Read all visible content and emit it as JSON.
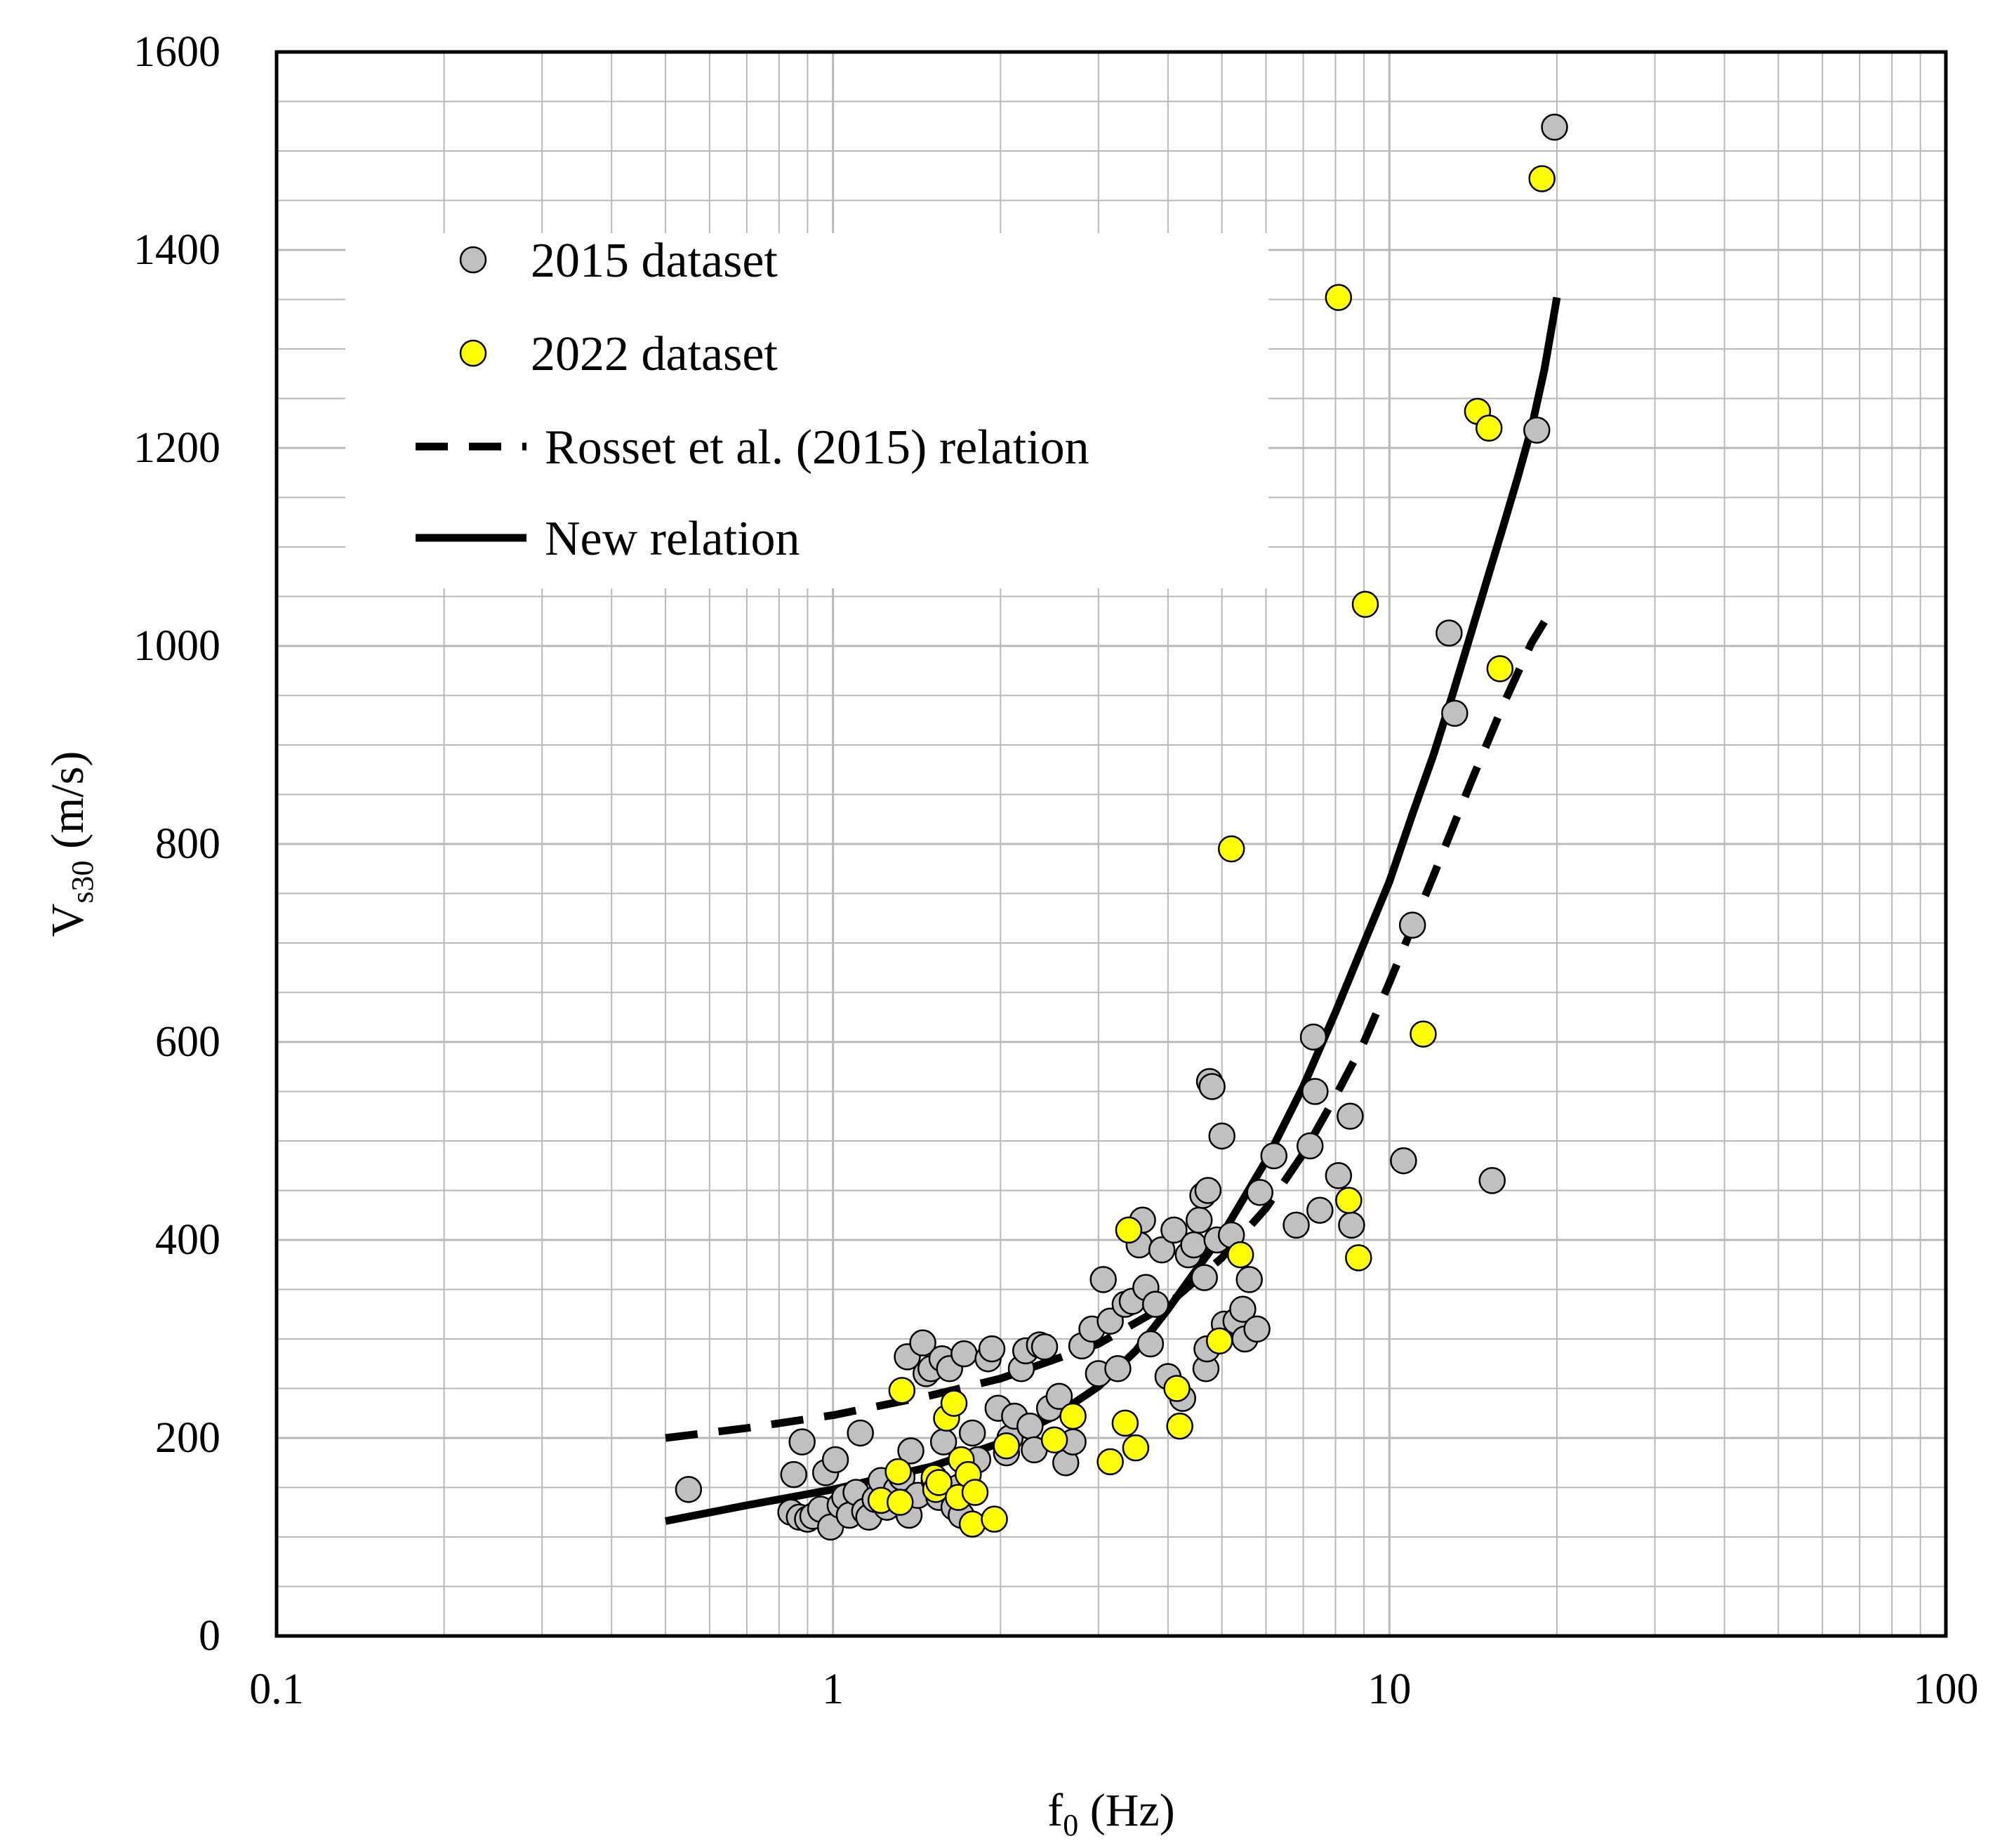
{
  "chart_data": {
    "type": "scatter",
    "title": "",
    "xlabel": {
      "main": "f",
      "sub": "0",
      "suffix": " (Hz)"
    },
    "ylabel": {
      "main": "V",
      "sub": "s30",
      "suffix": " (m/s)"
    },
    "xscale": "log",
    "xlim": [
      0.1,
      100
    ],
    "ylim": [
      0,
      1600
    ],
    "x_tick_labels": [
      "0.1",
      "1",
      "10",
      "100"
    ],
    "y_tick_labels": [
      "0",
      "200",
      "400",
      "600",
      "800",
      "1000",
      "1200",
      "1400",
      "1600"
    ],
    "grid": true,
    "legend_position": "top-left",
    "legend": [
      "2015 dataset",
      "2022 dataset",
      "Rosset et al. (2015) relation",
      "New relation"
    ],
    "colors": {
      "grey_marker": "#c0c0c0",
      "yellow_marker": "#ffff00",
      "marker_edge": "#000000",
      "grid": "#b8b8b8",
      "line": "#000000"
    },
    "series": [
      {
        "name": "2015 dataset",
        "kind": "scatter",
        "points": [
          [
            0.55,
            148
          ],
          [
            0.84,
            125
          ],
          [
            0.85,
            163
          ],
          [
            0.87,
            120
          ],
          [
            0.88,
            196
          ],
          [
            0.9,
            118
          ],
          [
            0.92,
            121
          ],
          [
            0.95,
            128
          ],
          [
            0.97,
            165
          ],
          [
            0.99,
            110
          ],
          [
            1.01,
            178
          ],
          [
            1.03,
            132
          ],
          [
            1.05,
            140
          ],
          [
            1.07,
            122
          ],
          [
            1.1,
            145
          ],
          [
            1.12,
            205
          ],
          [
            1.14,
            126
          ],
          [
            1.16,
            120
          ],
          [
            1.19,
            138
          ],
          [
            1.22,
            157
          ],
          [
            1.25,
            130
          ],
          [
            1.3,
            148
          ],
          [
            1.33,
            160
          ],
          [
            1.36,
            282
          ],
          [
            1.37,
            122
          ],
          [
            1.38,
            187
          ],
          [
            1.42,
            142
          ],
          [
            1.45,
            296
          ],
          [
            1.47,
            265
          ],
          [
            1.5,
            270
          ],
          [
            1.52,
            157
          ],
          [
            1.55,
            140
          ],
          [
            1.57,
            280
          ],
          [
            1.58,
            196
          ],
          [
            1.62,
            270
          ],
          [
            1.65,
            130
          ],
          [
            1.68,
            150
          ],
          [
            1.7,
            122
          ],
          [
            1.72,
            285
          ],
          [
            1.78,
            205
          ],
          [
            1.82,
            178
          ],
          [
            1.9,
            280
          ],
          [
            1.93,
            290
          ],
          [
            1.98,
            230
          ],
          [
            2.05,
            185
          ],
          [
            2.08,
            200
          ],
          [
            2.12,
            222
          ],
          [
            2.18,
            270
          ],
          [
            2.22,
            288
          ],
          [
            2.26,
            212
          ],
          [
            2.3,
            188
          ],
          [
            2.35,
            294
          ],
          [
            2.4,
            292
          ],
          [
            2.45,
            230
          ],
          [
            2.55,
            242
          ],
          [
            2.62,
            175
          ],
          [
            2.7,
            196
          ],
          [
            2.8,
            293
          ],
          [
            2.92,
            310
          ],
          [
            3.0,
            265
          ],
          [
            3.06,
            360
          ],
          [
            3.15,
            318
          ],
          [
            3.25,
            270
          ],
          [
            3.35,
            335
          ],
          [
            3.45,
            338
          ],
          [
            3.55,
            395
          ],
          [
            3.6,
            420
          ],
          [
            3.65,
            352
          ],
          [
            3.72,
            295
          ],
          [
            3.8,
            335
          ],
          [
            3.9,
            390
          ],
          [
            4.0,
            262
          ],
          [
            4.1,
            410
          ],
          [
            4.25,
            240
          ],
          [
            4.35,
            385
          ],
          [
            4.45,
            395
          ],
          [
            4.55,
            420
          ],
          [
            4.62,
            445
          ],
          [
            4.65,
            362
          ],
          [
            4.68,
            270
          ],
          [
            4.7,
            290
          ],
          [
            4.72,
            450
          ],
          [
            4.75,
            560
          ],
          [
            4.8,
            555
          ],
          [
            4.9,
            400
          ],
          [
            5.0,
            505
          ],
          [
            5.05,
            315
          ],
          [
            5.2,
            405
          ],
          [
            5.3,
            318
          ],
          [
            5.45,
            330
          ],
          [
            5.5,
            300
          ],
          [
            5.6,
            360
          ],
          [
            5.78,
            310
          ],
          [
            5.85,
            448
          ],
          [
            6.2,
            485
          ],
          [
            6.8,
            415
          ],
          [
            7.2,
            495
          ],
          [
            7.3,
            605
          ],
          [
            7.35,
            550
          ],
          [
            7.5,
            430
          ],
          [
            8.1,
            465
          ],
          [
            8.5,
            525
          ],
          [
            8.55,
            415
          ],
          [
            10.6,
            480
          ],
          [
            11.0,
            718
          ],
          [
            12.8,
            1013
          ],
          [
            13.1,
            932
          ],
          [
            15.3,
            460
          ],
          [
            18.4,
            1218
          ],
          [
            19.8,
            1524
          ]
        ]
      },
      {
        "name": "2022 dataset",
        "kind": "scatter",
        "points": [
          [
            1.22,
            137
          ],
          [
            1.31,
            166
          ],
          [
            1.32,
            135
          ],
          [
            1.33,
            248
          ],
          [
            1.52,
            160
          ],
          [
            1.53,
            148
          ],
          [
            1.55,
            155
          ],
          [
            1.6,
            220
          ],
          [
            1.65,
            235
          ],
          [
            1.68,
            140
          ],
          [
            1.7,
            178
          ],
          [
            1.75,
            163
          ],
          [
            1.78,
            113
          ],
          [
            1.8,
            145
          ],
          [
            1.95,
            118
          ],
          [
            2.05,
            192
          ],
          [
            2.5,
            198
          ],
          [
            2.7,
            222
          ],
          [
            3.15,
            176
          ],
          [
            3.35,
            215
          ],
          [
            3.4,
            410
          ],
          [
            3.5,
            190
          ],
          [
            4.15,
            250
          ],
          [
            4.2,
            212
          ],
          [
            4.95,
            298
          ],
          [
            5.2,
            795
          ],
          [
            5.4,
            385
          ],
          [
            8.1,
            1352
          ],
          [
            8.45,
            440
          ],
          [
            8.8,
            382
          ],
          [
            9.05,
            1042
          ],
          [
            11.5,
            608
          ],
          [
            14.4,
            1237
          ],
          [
            15.1,
            1220
          ],
          [
            15.8,
            977
          ],
          [
            18.8,
            1472
          ]
        ]
      },
      {
        "name": "Rosset et al. (2015) relation",
        "kind": "line",
        "style": "dashed",
        "points": [
          [
            0.5,
            200
          ],
          [
            0.7,
            210
          ],
          [
            1.0,
            223
          ],
          [
            1.5,
            243
          ],
          [
            2.0,
            260
          ],
          [
            3.0,
            295
          ],
          [
            4.0,
            335
          ],
          [
            5.0,
            382
          ],
          [
            6.0,
            432
          ],
          [
            7.0,
            487
          ],
          [
            8.0,
            545
          ],
          [
            9.0,
            600
          ],
          [
            10.0,
            660
          ],
          [
            12.0,
            768
          ],
          [
            14.0,
            862
          ],
          [
            16.0,
            940
          ],
          [
            18.0,
            1003
          ],
          [
            19.5,
            1035
          ]
        ]
      },
      {
        "name": "New relation",
        "kind": "line",
        "style": "solid",
        "points": [
          [
            0.5,
            116
          ],
          [
            0.7,
            132
          ],
          [
            1.0,
            148
          ],
          [
            1.5,
            171
          ],
          [
            2.0,
            195
          ],
          [
            2.5,
            222
          ],
          [
            3.0,
            252
          ],
          [
            3.5,
            288
          ],
          [
            4.0,
            330
          ],
          [
            4.5,
            370
          ],
          [
            5.0,
            405
          ],
          [
            6.0,
            480
          ],
          [
            7.0,
            555
          ],
          [
            8.0,
            630
          ],
          [
            9.0,
            700
          ],
          [
            10.0,
            762
          ],
          [
            11.0,
            830
          ],
          [
            12.0,
            890
          ],
          [
            13.0,
            952
          ],
          [
            14.0,
            1012
          ],
          [
            15.0,
            1068
          ],
          [
            16.0,
            1120
          ],
          [
            17.0,
            1170
          ],
          [
            18.0,
            1220
          ],
          [
            19.0,
            1280
          ],
          [
            20.0,
            1352
          ]
        ]
      }
    ]
  }
}
